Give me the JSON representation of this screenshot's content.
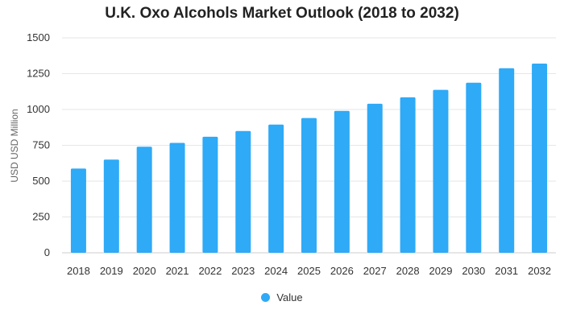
{
  "chart_data": {
    "type": "bar",
    "title": "U.K. Oxo Alcohols Market Outlook (2018 to 2032)",
    "xlabel": "",
    "ylabel": "USD USD Million",
    "categories": [
      "2018",
      "2019",
      "2020",
      "2021",
      "2022",
      "2023",
      "2024",
      "2025",
      "2026",
      "2027",
      "2028",
      "2029",
      "2030",
      "2031",
      "2032"
    ],
    "series": [
      {
        "name": "Value",
        "values": [
          588,
          650,
          740,
          767,
          810,
          850,
          895,
          940,
          990,
          1040,
          1085,
          1137,
          1187,
          1288,
          1320
        ]
      }
    ],
    "ylim": [
      0,
      1500
    ],
    "yticks": [
      0,
      250,
      500,
      750,
      1000,
      1250,
      1500
    ],
    "grid": true,
    "legend_position": "bottom-center",
    "colors": {
      "bar": "#2eaaf7",
      "grid": "#e6e6e6",
      "axis_text": "#333333"
    }
  }
}
